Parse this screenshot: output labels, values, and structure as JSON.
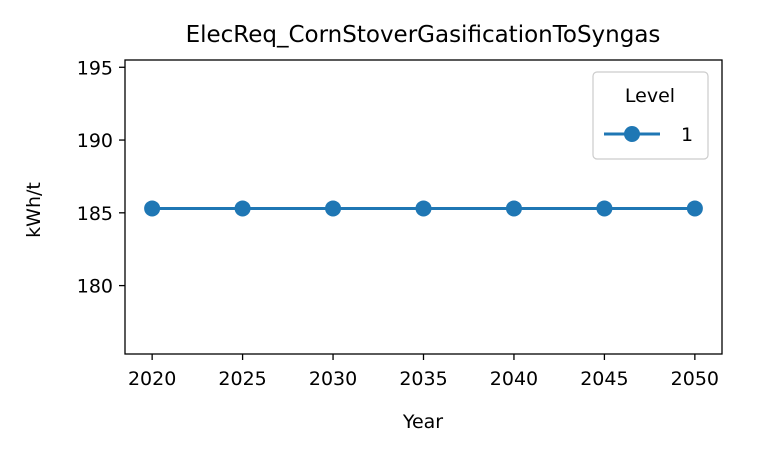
{
  "chart_data": {
    "type": "line",
    "title": "ElecReq_CornStoverGasificationToSyngas",
    "xlabel": "Year",
    "ylabel": "kWh/t",
    "x": [
      2020,
      2025,
      2030,
      2035,
      2040,
      2045,
      2050
    ],
    "xticks": [
      "2020",
      "2025",
      "2030",
      "2035",
      "2040",
      "2045",
      "2050"
    ],
    "xlim": [
      2018.5,
      2051.5
    ],
    "ylim": [
      175.3,
      195.5
    ],
    "yticks": [
      "180",
      "185",
      "190",
      "195"
    ],
    "grid": false,
    "legend": {
      "title": "Level",
      "placement": "top-right"
    },
    "series": [
      {
        "name": "1",
        "values": [
          185.3,
          185.3,
          185.3,
          185.3,
          185.3,
          185.3,
          185.3
        ],
        "color": "#1f77b4",
        "marker": "circle"
      }
    ]
  }
}
